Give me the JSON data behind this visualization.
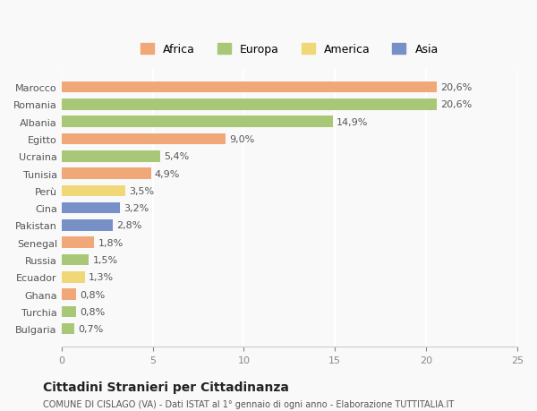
{
  "countries": [
    "Bulgaria",
    "Turchia",
    "Ghana",
    "Ecuador",
    "Russia",
    "Senegal",
    "Pakistan",
    "Cina",
    "Perù",
    "Tunisia",
    "Ucraina",
    "Egitto",
    "Albania",
    "Romania",
    "Marocco"
  ],
  "values": [
    0.7,
    0.8,
    0.8,
    1.3,
    1.5,
    1.8,
    2.8,
    3.2,
    3.5,
    4.9,
    5.4,
    9.0,
    14.9,
    20.6,
    20.6
  ],
  "labels": [
    "0,7%",
    "0,8%",
    "0,8%",
    "1,3%",
    "1,5%",
    "1,8%",
    "2,8%",
    "3,2%",
    "3,5%",
    "4,9%",
    "5,4%",
    "9,0%",
    "14,9%",
    "20,6%",
    "20,6%"
  ],
  "continents": [
    "Europa",
    "Europa",
    "Africa",
    "America",
    "Europa",
    "Africa",
    "Asia",
    "Asia",
    "America",
    "Africa",
    "Europa",
    "Africa",
    "Europa",
    "Europa",
    "Africa"
  ],
  "continent_colors": {
    "Africa": "#F0A878",
    "Europa": "#A8C878",
    "America": "#F0D878",
    "Asia": "#7890C8"
  },
  "legend_order": [
    "Africa",
    "Europa",
    "America",
    "Asia"
  ],
  "title": "Cittadini Stranieri per Cittadinanza",
  "subtitle": "COMUNE DI CISLAGO (VA) - Dati ISTAT al 1° gennaio di ogni anno - Elaborazione TUTTITALIA.IT",
  "xlim": [
    0,
    25
  ],
  "xticks": [
    0,
    5,
    10,
    15,
    20,
    25
  ],
  "background_color": "#f9f9f9",
  "grid_color": "#ffffff",
  "bar_height": 0.65
}
